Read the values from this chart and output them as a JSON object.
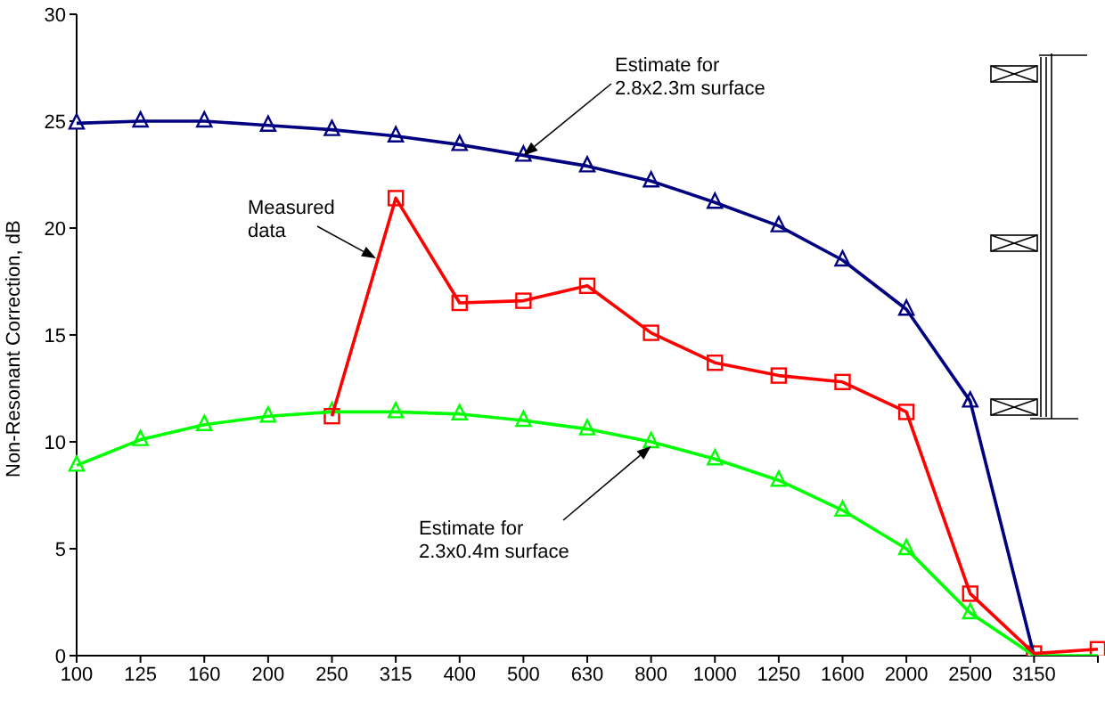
{
  "chart_data": {
    "type": "line",
    "ylabel": "Non-Resonant Correction, dB",
    "categories": [
      "100",
      "125",
      "160",
      "200",
      "250",
      "315",
      "400",
      "500",
      "630",
      "800",
      "1000",
      "1250",
      "1600",
      "2000",
      "2500",
      "3150",
      null
    ],
    "series": [
      {
        "color": "#000080",
        "marker": "triangle",
        "values": [
          24.9,
          25.0,
          25.0,
          24.8,
          24.6,
          24.3,
          23.9,
          23.4,
          22.9,
          22.2,
          21.2,
          20.1,
          18.5,
          16.2,
          11.9,
          0,
          null
        ]
      },
      {
        "color": "#00ff00",
        "marker": "triangle",
        "values": [
          8.9,
          10.1,
          10.8,
          11.2,
          11.4,
          11.4,
          11.3,
          11.0,
          10.6,
          10.0,
          9.2,
          8.2,
          6.8,
          5.0,
          2.0,
          0,
          0
        ]
      },
      {
        "color": "#ff0000",
        "marker": "square",
        "values": [
          null,
          null,
          null,
          null,
          11.2,
          21.4,
          16.5,
          16.6,
          17.3,
          15.1,
          13.7,
          13.1,
          12.8,
          11.4,
          2.9,
          0.1,
          0.3
        ]
      }
    ],
    "ylim": [
      0,
      30
    ],
    "yticks": [
      0,
      5,
      10,
      15,
      20,
      25,
      30
    ],
    "annotations": [
      {
        "text": "Estimate for\n2.8x2.3m surface",
        "x": "500",
        "y": 23.4
      },
      "Measured\ndata",
      {
        "text": "Estimate for\n2.3x0.4m surface",
        "x": "800",
        "y": 9.8
      }
    ]
  }
}
